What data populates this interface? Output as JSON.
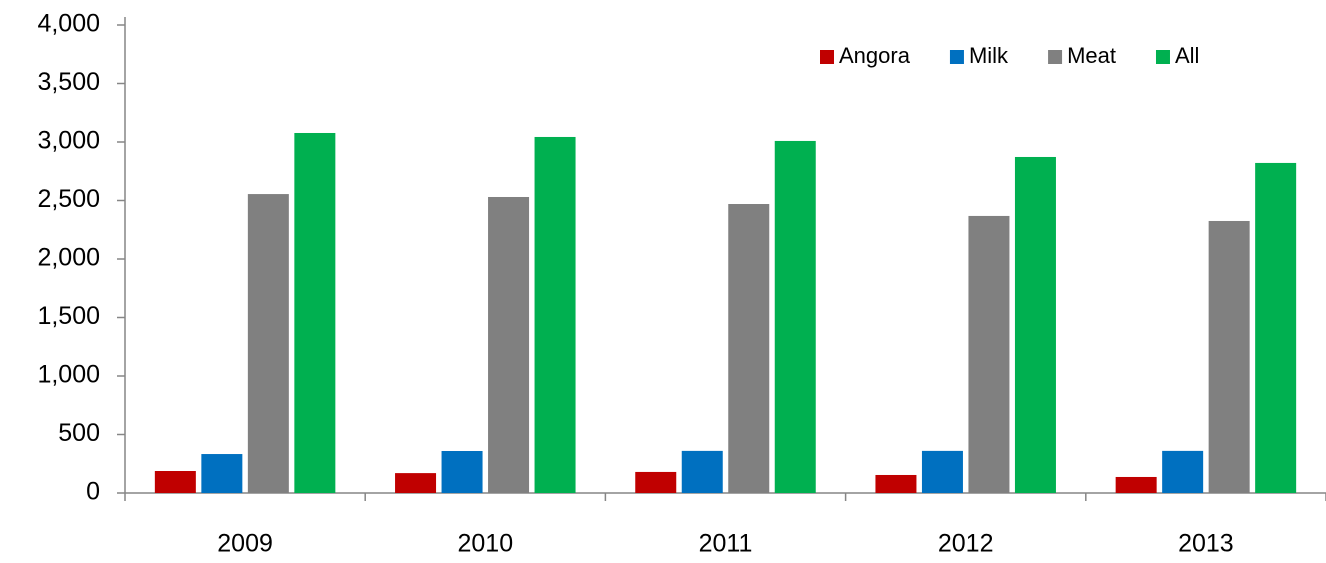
{
  "chart_data": {
    "type": "bar",
    "categories": [
      "2009",
      "2010",
      "2011",
      "2012",
      "2013"
    ],
    "series": [
      {
        "name": "Angora",
        "color": "#c00000",
        "values": [
          188,
          170,
          180,
          154,
          137
        ]
      },
      {
        "name": "Milk",
        "color": "#0070c0",
        "values": [
          333,
          359,
          360,
          360,
          360
        ]
      },
      {
        "name": "Meat",
        "color": "#808080",
        "values": [
          2555,
          2530,
          2470,
          2368,
          2325
        ]
      },
      {
        "name": "All",
        "color": "#00b050",
        "values": [
          3077,
          3043,
          3009,
          2872,
          2821
        ]
      }
    ],
    "ylim": [
      0,
      4000
    ],
    "yticks": [
      0,
      500,
      {
        "value": 1000,
        "label": "1,000"
      },
      {
        "value": 1500,
        "label": "1,500"
      },
      {
        "value": 2000,
        "label": "2,000"
      },
      {
        "value": 2500,
        "label": "2,500"
      },
      {
        "value": 3000,
        "label": "3,000"
      },
      {
        "value": 3500,
        "label": "3,500"
      },
      {
        "value": 4000,
        "label": "4,000"
      }
    ],
    "grid": false,
    "legend": "top-right"
  }
}
